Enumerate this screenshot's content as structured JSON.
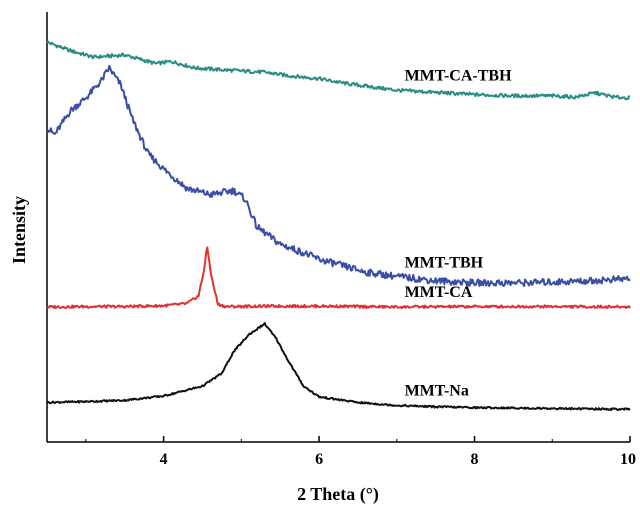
{
  "chart_data": {
    "type": "line",
    "title": "",
    "xlabel": "2 Theta (°)",
    "ylabel": "Intensity",
    "xlim": [
      2.5,
      10
    ],
    "x_ticks": [
      4,
      6,
      8,
      10
    ],
    "y_ticks_shown": false,
    "grid": false,
    "legend": "none (series labeled inline at right)",
    "series": [
      {
        "name": "MMT-CA-TBH",
        "color": "#2a8c84",
        "label_x": 7.1,
        "points": [
          [
            2.5,
            0.93
          ],
          [
            2.8,
            0.91
          ],
          [
            3.1,
            0.895
          ],
          [
            3.5,
            0.9
          ],
          [
            3.9,
            0.88
          ],
          [
            4.1,
            0.885
          ],
          [
            4.4,
            0.87
          ],
          [
            4.8,
            0.865
          ],
          [
            5.3,
            0.86
          ],
          [
            5.6,
            0.852
          ],
          [
            6.0,
            0.845
          ],
          [
            6.3,
            0.835
          ],
          [
            6.7,
            0.825
          ],
          [
            7.0,
            0.818
          ],
          [
            7.5,
            0.813
          ],
          [
            8.0,
            0.808
          ],
          [
            8.5,
            0.805
          ],
          [
            9.0,
            0.805
          ],
          [
            9.3,
            0.802
          ],
          [
            9.55,
            0.812
          ],
          [
            9.8,
            0.802
          ],
          [
            10.0,
            0.8
          ]
        ]
      },
      {
        "name": "MMT-TBH",
        "color": "#3b4ea6",
        "label_x": 7.1,
        "points": [
          [
            2.5,
            0.73
          ],
          [
            2.6,
            0.715
          ],
          [
            2.8,
            0.77
          ],
          [
            3.0,
            0.8
          ],
          [
            3.2,
            0.84
          ],
          [
            3.3,
            0.87
          ],
          [
            3.45,
            0.83
          ],
          [
            3.6,
            0.75
          ],
          [
            3.8,
            0.67
          ],
          [
            4.0,
            0.635
          ],
          [
            4.3,
            0.59
          ],
          [
            4.6,
            0.575
          ],
          [
            4.9,
            0.585
          ],
          [
            5.05,
            0.565
          ],
          [
            5.2,
            0.5
          ],
          [
            5.5,
            0.46
          ],
          [
            5.8,
            0.44
          ],
          [
            6.0,
            0.425
          ],
          [
            6.3,
            0.41
          ],
          [
            6.6,
            0.395
          ],
          [
            7.0,
            0.385
          ],
          [
            7.5,
            0.375
          ],
          [
            8.0,
            0.37
          ],
          [
            8.5,
            0.37
          ],
          [
            9.0,
            0.372
          ],
          [
            9.5,
            0.375
          ],
          [
            10.0,
            0.38
          ]
        ]
      },
      {
        "name": "MMT-CA",
        "color": "#e03030",
        "label_x": 7.1,
        "points": [
          [
            2.5,
            0.314
          ],
          [
            3.0,
            0.315
          ],
          [
            3.5,
            0.315
          ],
          [
            4.0,
            0.317
          ],
          [
            4.3,
            0.322
          ],
          [
            4.45,
            0.34
          ],
          [
            4.52,
            0.4
          ],
          [
            4.56,
            0.455
          ],
          [
            4.62,
            0.38
          ],
          [
            4.7,
            0.32
          ],
          [
            4.8,
            0.315
          ],
          [
            5.5,
            0.316
          ],
          [
            6.0,
            0.316
          ],
          [
            7.0,
            0.314
          ],
          [
            8.0,
            0.315
          ],
          [
            9.0,
            0.315
          ],
          [
            10.0,
            0.314
          ]
        ]
      },
      {
        "name": "MMT-Na",
        "color": "#111111",
        "label_x": 7.1,
        "points": [
          [
            2.5,
            0.092
          ],
          [
            3.0,
            0.094
          ],
          [
            3.5,
            0.097
          ],
          [
            4.0,
            0.107
          ],
          [
            4.5,
            0.13
          ],
          [
            4.75,
            0.16
          ],
          [
            4.9,
            0.21
          ],
          [
            5.1,
            0.25
          ],
          [
            5.3,
            0.275
          ],
          [
            5.45,
            0.24
          ],
          [
            5.6,
            0.19
          ],
          [
            5.8,
            0.13
          ],
          [
            6.0,
            0.105
          ],
          [
            6.5,
            0.092
          ],
          [
            7.0,
            0.085
          ],
          [
            7.5,
            0.082
          ],
          [
            8.0,
            0.08
          ],
          [
            8.5,
            0.079
          ],
          [
            9.0,
            0.078
          ],
          [
            9.5,
            0.077
          ],
          [
            10.0,
            0.076
          ]
        ]
      }
    ]
  }
}
